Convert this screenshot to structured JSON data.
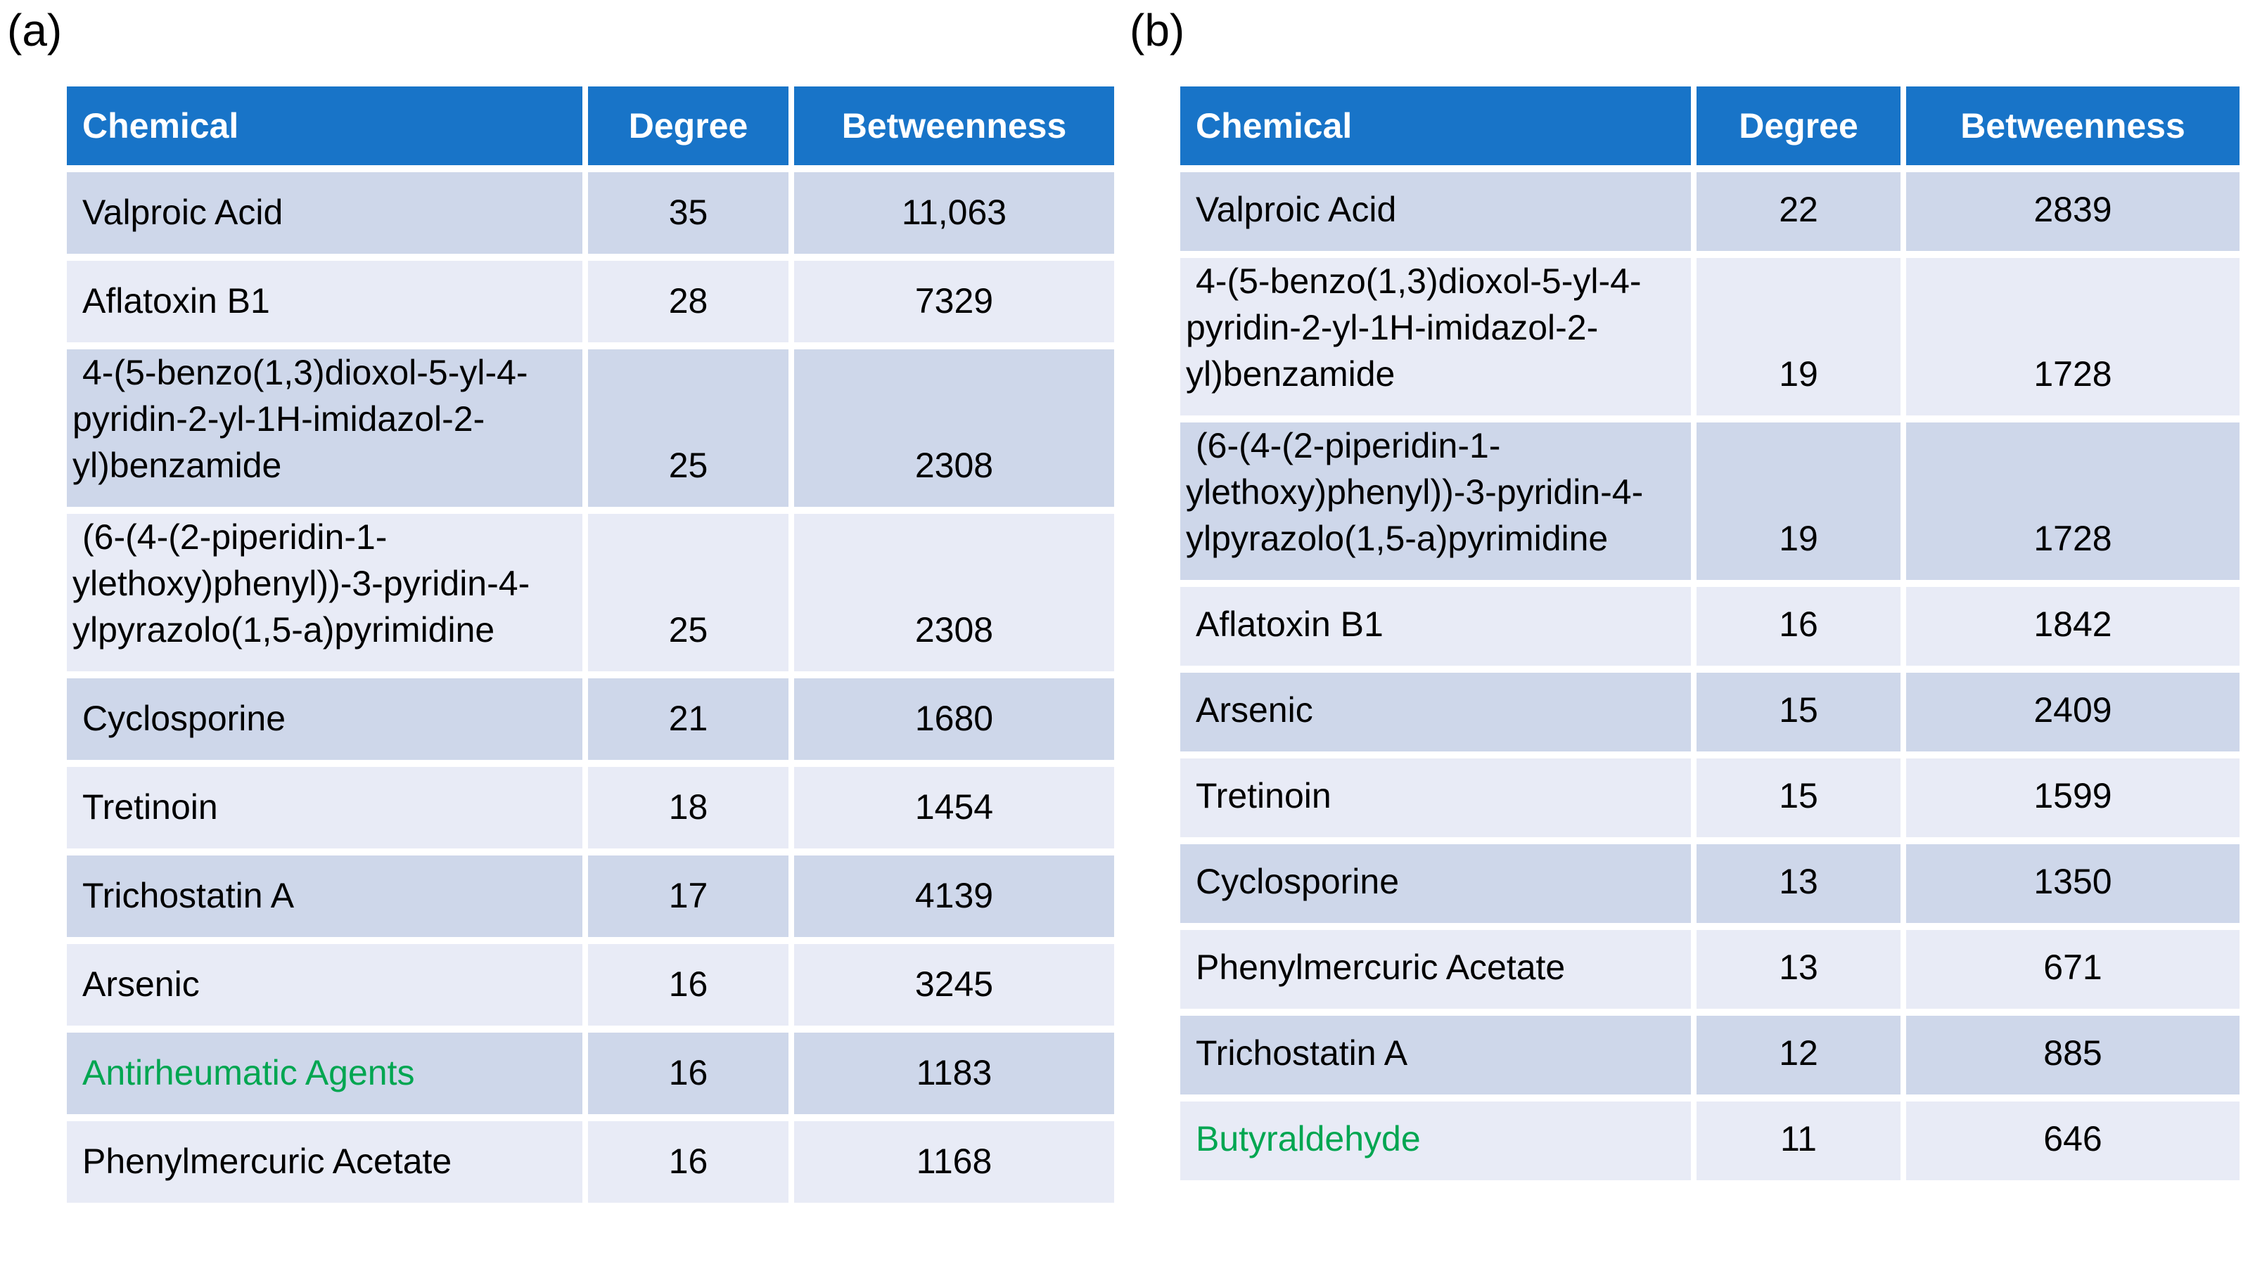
{
  "colors": {
    "header_bg": "#1874C8",
    "header_text": "#FFFFFF",
    "row_dark": "#CED7EA",
    "row_light": "#E8EBF6",
    "body_text": "#000000",
    "highlight_text": "#00A651",
    "page_bg": "#FFFFFF"
  },
  "panels": [
    {
      "label": "(a)",
      "columns": [
        "Chemical",
        "Degree",
        "Betweenness"
      ],
      "rows": [
        {
          "chemical": "Valproic Acid",
          "degree": "35",
          "betweenness": "11,063",
          "highlight": false
        },
        {
          "chemical": "Aflatoxin B1",
          "degree": "28",
          "betweenness": "7329",
          "highlight": false
        },
        {
          "chemical": "4-(5-benzo(1,3)dioxol-5-yl-4-pyridin-2-yl-1H-imidazol-2-yl)benzamide",
          "degree": "25",
          "betweenness": "2308",
          "highlight": false
        },
        {
          "chemical": "(6-(4-(2-piperidin-1-ylethoxy)phenyl))-3-pyridin-4-ylpyrazolo(1,5-a)pyrimidine",
          "degree": "25",
          "betweenness": "2308",
          "highlight": false
        },
        {
          "chemical": "Cyclosporine",
          "degree": "21",
          "betweenness": "1680",
          "highlight": false
        },
        {
          "chemical": "Tretinoin",
          "degree": "18",
          "betweenness": "1454",
          "highlight": false
        },
        {
          "chemical": "Trichostatin A",
          "degree": "17",
          "betweenness": "4139",
          "highlight": false
        },
        {
          "chemical": "Arsenic",
          "degree": "16",
          "betweenness": "3245",
          "highlight": false
        },
        {
          "chemical": "Antirheumatic Agents",
          "degree": "16",
          "betweenness": "1183",
          "highlight": true
        },
        {
          "chemical": "Phenylmercuric Acetate",
          "degree": "16",
          "betweenness": "1168",
          "highlight": false
        }
      ]
    },
    {
      "label": "(b)",
      "columns": [
        "Chemical",
        "Degree",
        "Betweenness"
      ],
      "rows": [
        {
          "chemical": "Valproic Acid",
          "degree": "22",
          "betweenness": "2839",
          "highlight": false
        },
        {
          "chemical": "4-(5-benzo(1,3)dioxol-5-yl-4-pyridin-2-yl-1H-imidazol-2-yl)benzamide",
          "degree": "19",
          "betweenness": "1728",
          "highlight": false
        },
        {
          "chemical": "(6-(4-(2-piperidin-1-ylethoxy)phenyl))-3-pyridin-4-ylpyrazolo(1,5-a)pyrimidine",
          "degree": "19",
          "betweenness": "1728",
          "highlight": false
        },
        {
          "chemical": "Aflatoxin B1",
          "degree": "16",
          "betweenness": "1842",
          "highlight": false
        },
        {
          "chemical": "Arsenic",
          "degree": "15",
          "betweenness": "2409",
          "highlight": false
        },
        {
          "chemical": "Tretinoin",
          "degree": "15",
          "betweenness": "1599",
          "highlight": false
        },
        {
          "chemical": "Cyclosporine",
          "degree": "13",
          "betweenness": "1350",
          "highlight": false
        },
        {
          "chemical": "Phenylmercuric Acetate",
          "degree": "13",
          "betweenness": "671",
          "highlight": false
        },
        {
          "chemical": "Trichostatin A",
          "degree": "12",
          "betweenness": "885",
          "highlight": false
        },
        {
          "chemical": "Butyraldehyde",
          "degree": "11",
          "betweenness": "646",
          "highlight": true
        }
      ]
    }
  ],
  "chart_data": [
    {
      "type": "table",
      "title": "(a)",
      "columns": [
        "Chemical",
        "Degree",
        "Betweenness"
      ],
      "rows": [
        [
          "Valproic Acid",
          35,
          11063
        ],
        [
          "Aflatoxin B1",
          28,
          7329
        ],
        [
          "4-(5-benzo(1,3)dioxol-5-yl-4-pyridin-2-yl-1H-imidazol-2-yl)benzamide",
          25,
          2308
        ],
        [
          "(6-(4-(2-piperidin-1-ylethoxy)phenyl))-3-pyridin-4-ylpyrazolo(1,5-a)pyrimidine",
          25,
          2308
        ],
        [
          "Cyclosporine",
          21,
          1680
        ],
        [
          "Tretinoin",
          18,
          1454
        ],
        [
          "Trichostatin A",
          17,
          4139
        ],
        [
          "Arsenic",
          16,
          3245
        ],
        [
          "Antirheumatic Agents",
          16,
          1183
        ],
        [
          "Phenylmercuric Acetate",
          16,
          1168
        ]
      ],
      "highlighted_rows": [
        "Antirheumatic Agents"
      ]
    },
    {
      "type": "table",
      "title": "(b)",
      "columns": [
        "Chemical",
        "Degree",
        "Betweenness"
      ],
      "rows": [
        [
          "Valproic Acid",
          22,
          2839
        ],
        [
          "4-(5-benzo(1,3)dioxol-5-yl-4-pyridin-2-yl-1H-imidazol-2-yl)benzamide",
          19,
          1728
        ],
        [
          "(6-(4-(2-piperidin-1-ylethoxy)phenyl))-3-pyridin-4-ylpyrazolo(1,5-a)pyrimidine",
          19,
          1728
        ],
        [
          "Aflatoxin B1",
          16,
          1842
        ],
        [
          "Arsenic",
          15,
          2409
        ],
        [
          "Tretinoin",
          15,
          1599
        ],
        [
          "Cyclosporine",
          13,
          1350
        ],
        [
          "Phenylmercuric Acetate",
          13,
          671
        ],
        [
          "Trichostatin A",
          12,
          885
        ],
        [
          "Butyraldehyde",
          11,
          646
        ]
      ],
      "highlighted_rows": [
        "Butyraldehyde"
      ]
    }
  ]
}
